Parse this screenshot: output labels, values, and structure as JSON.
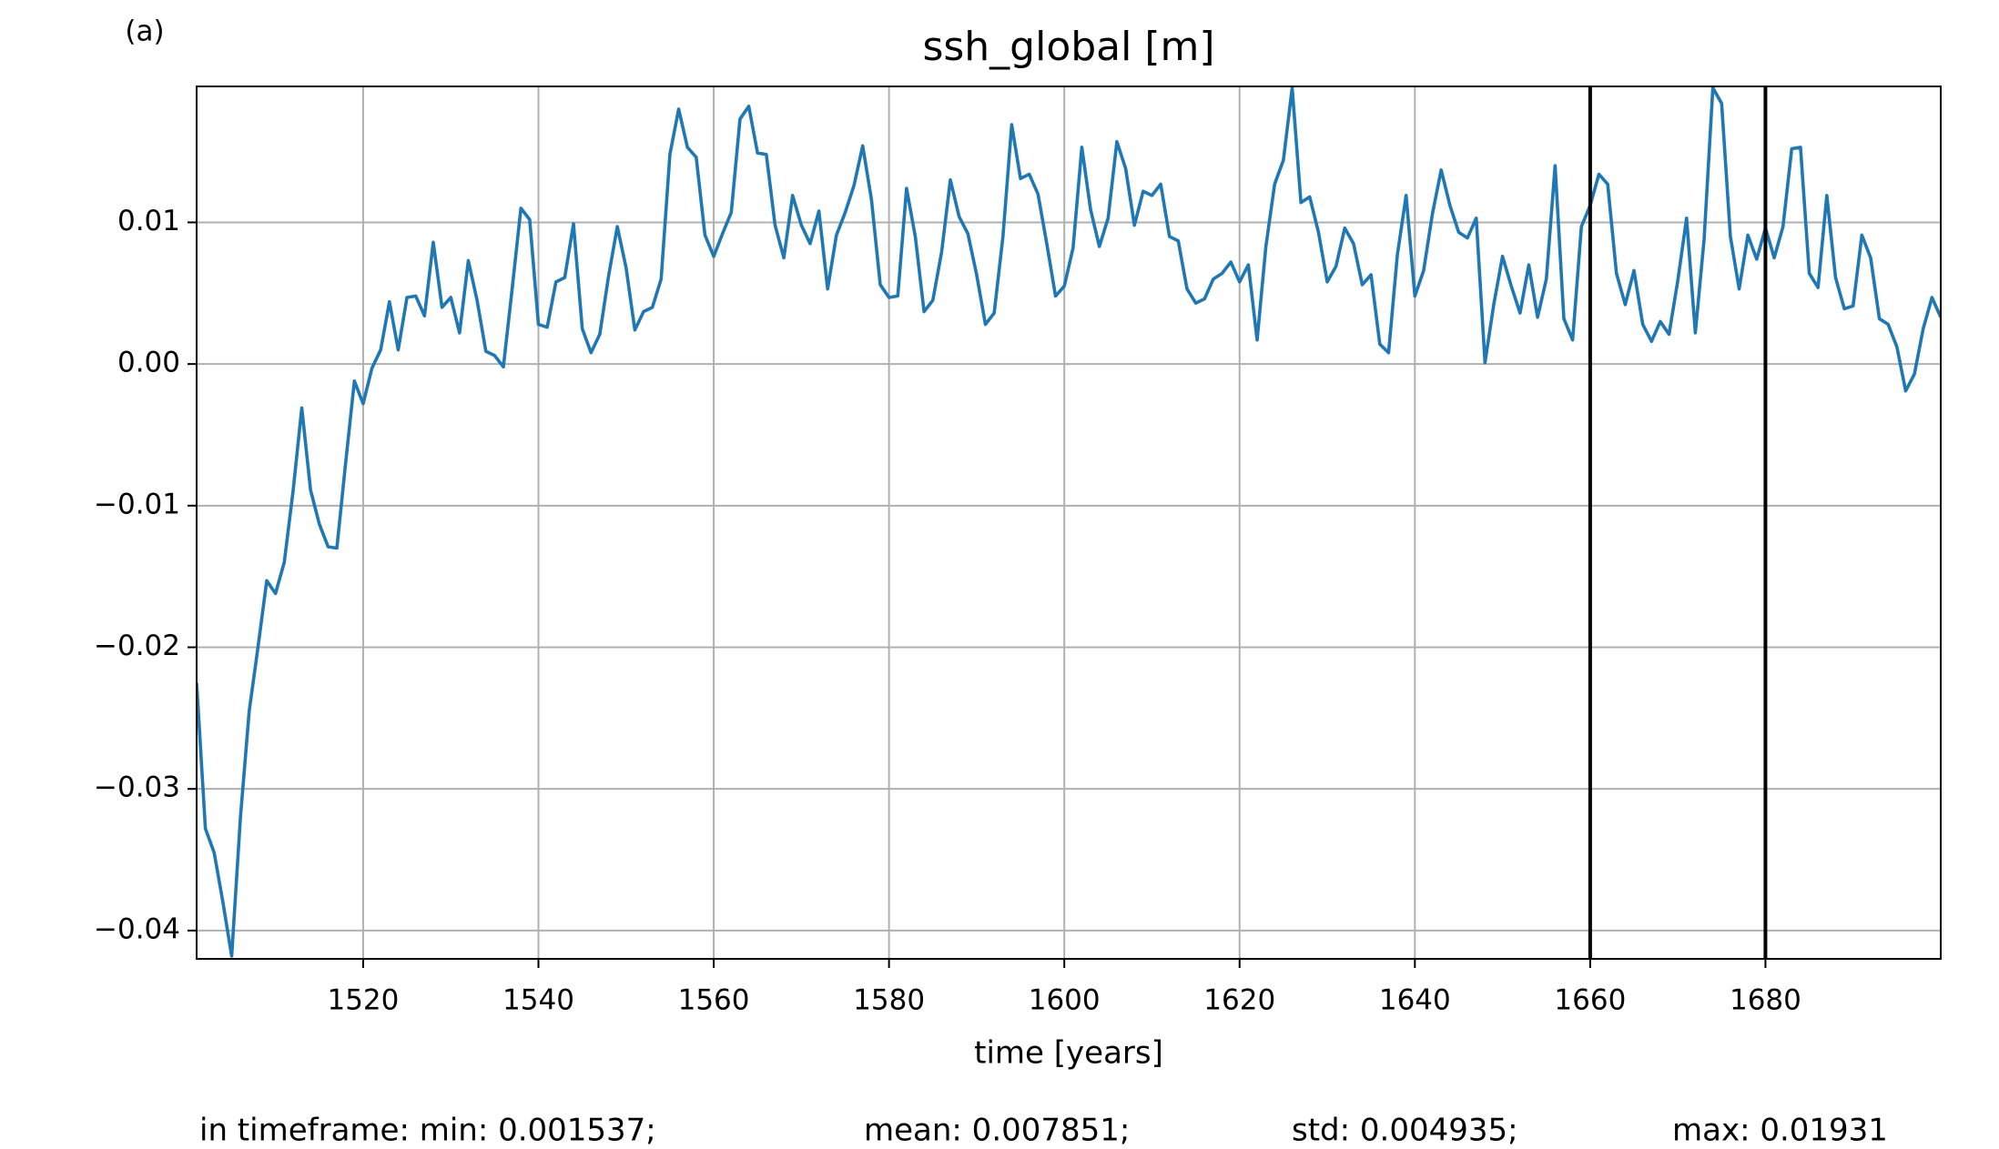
{
  "chart_data": {
    "type": "line",
    "panel_label": "(a)",
    "title": "ssh_global [m]",
    "x_label": "time [years]",
    "footer": [
      "in timeframe: min: 0.001537;",
      "mean: 0.007851;",
      "std: 0.004935;",
      "max: 0.01931"
    ],
    "x": [
      1501,
      1502,
      1503,
      1504,
      1505,
      1506,
      1507,
      1508,
      1509,
      1510,
      1511,
      1512,
      1513,
      1514,
      1515,
      1516,
      1517,
      1518,
      1519,
      1520,
      1521,
      1522,
      1523,
      1524,
      1525,
      1526,
      1527,
      1528,
      1529,
      1530,
      1531,
      1532,
      1533,
      1534,
      1535,
      1536,
      1537,
      1538,
      1539,
      1540,
      1541,
      1542,
      1543,
      1544,
      1545,
      1546,
      1547,
      1548,
      1549,
      1550,
      1551,
      1552,
      1553,
      1554,
      1555,
      1556,
      1557,
      1558,
      1559,
      1560,
      1561,
      1562,
      1563,
      1564,
      1565,
      1566,
      1567,
      1568,
      1569,
      1570,
      1571,
      1572,
      1573,
      1574,
      1575,
      1576,
      1577,
      1578,
      1579,
      1580,
      1581,
      1582,
      1583,
      1584,
      1585,
      1586,
      1587,
      1588,
      1589,
      1590,
      1591,
      1592,
      1593,
      1594,
      1595,
      1596,
      1597,
      1598,
      1599,
      1600,
      1601,
      1602,
      1603,
      1604,
      1605,
      1606,
      1607,
      1608,
      1609,
      1610,
      1611,
      1612,
      1613,
      1614,
      1615,
      1616,
      1617,
      1618,
      1619,
      1620,
      1621,
      1622,
      1623,
      1624,
      1625,
      1626,
      1627,
      1628,
      1629,
      1630,
      1631,
      1632,
      1633,
      1634,
      1635,
      1636,
      1637,
      1638,
      1639,
      1640,
      1641,
      1642,
      1643,
      1644,
      1645,
      1646,
      1647,
      1648,
      1649,
      1650,
      1651,
      1652,
      1653,
      1654,
      1655,
      1656,
      1657,
      1658,
      1659,
      1660,
      1661,
      1662,
      1663,
      1664,
      1665,
      1666,
      1667,
      1668,
      1669,
      1670,
      1671,
      1672,
      1673,
      1674,
      1675,
      1676,
      1677,
      1678,
      1679,
      1680,
      1681,
      1682,
      1683,
      1684,
      1685,
      1686,
      1687,
      1688,
      1689,
      1690,
      1691,
      1692,
      1693,
      1694,
      1695,
      1696,
      1697,
      1698,
      1699,
      1700
    ],
    "series": [
      {
        "color": "#1f77b4",
        "values": [
          -0.0225,
          -0.0328,
          -0.0345,
          -0.038,
          -0.0418,
          -0.032,
          -0.0245,
          -0.02,
          -0.0153,
          -0.0162,
          -0.014,
          -0.009,
          -0.0031,
          -0.0089,
          -0.0113,
          -0.0129,
          -0.013,
          -0.007,
          -0.0012,
          -0.0028,
          -0.0003,
          0.001,
          0.0044,
          0.001,
          0.0047,
          0.0048,
          0.0034,
          0.0086,
          0.004,
          0.0047,
          0.0022,
          0.0073,
          0.0045,
          0.0009,
          0.0006,
          -0.0002,
          0.0053,
          0.011,
          0.0102,
          0.0028,
          0.0026,
          0.0058,
          0.0061,
          0.0099,
          0.0025,
          0.0008,
          0.0021,
          0.0062,
          0.0097,
          0.0068,
          0.0024,
          0.0037,
          0.004,
          0.006,
          0.0148,
          0.018,
          0.0153,
          0.0146,
          0.0091,
          0.0076,
          0.0092,
          0.0107,
          0.0173,
          0.0182,
          0.0149,
          0.0148,
          0.0098,
          0.0075,
          0.0119,
          0.0098,
          0.0085,
          0.0108,
          0.0053,
          0.0091,
          0.0107,
          0.0126,
          0.0154,
          0.0116,
          0.0056,
          0.0047,
          0.0048,
          0.0124,
          0.009,
          0.0037,
          0.0045,
          0.0079,
          0.013,
          0.0104,
          0.0092,
          0.0063,
          0.0028,
          0.0036,
          0.009,
          0.0169,
          0.0131,
          0.0134,
          0.012,
          0.0085,
          0.0048,
          0.0055,
          0.0082,
          0.0153,
          0.0109,
          0.0083,
          0.0103,
          0.0157,
          0.0138,
          0.0098,
          0.0122,
          0.0119,
          0.0127,
          0.009,
          0.0087,
          0.0053,
          0.0043,
          0.0046,
          0.006,
          0.0064,
          0.0072,
          0.0058,
          0.007,
          0.0017,
          0.0083,
          0.0127,
          0.0144,
          0.0195,
          0.0114,
          0.0118,
          0.0093,
          0.0058,
          0.0069,
          0.0096,
          0.0085,
          0.0056,
          0.0063,
          0.0014,
          0.0008,
          0.0077,
          0.0119,
          0.0048,
          0.0066,
          0.0106,
          0.0137,
          0.0112,
          0.0093,
          0.0089,
          0.0103,
          0.0001,
          0.0042,
          0.0076,
          0.0055,
          0.0036,
          0.007,
          0.0033,
          0.006,
          0.014,
          0.0032,
          0.0017,
          0.0097,
          0.0112,
          0.0134,
          0.0127,
          0.0064,
          0.0042,
          0.0066,
          0.0028,
          0.0016,
          0.003,
          0.0021,
          0.0059,
          0.0103,
          0.0022,
          0.0088,
          0.0195,
          0.0184,
          0.009,
          0.0053,
          0.0091,
          0.0074,
          0.0096,
          0.0075,
          0.0097,
          0.0152,
          0.0153,
          0.0064,
          0.0054,
          0.0119,
          0.0061,
          0.0039,
          0.0041,
          0.0091,
          0.0075,
          0.0032,
          0.0028,
          0.0012,
          -0.0019,
          -0.0007,
          0.0025,
          0.0047,
          0.0033
        ]
      }
    ],
    "vlines": [
      1660,
      1680
    ],
    "vline_color": "#000000",
    "xlim": [
      1501,
      1700
    ],
    "xticks": [
      1520,
      1540,
      1560,
      1580,
      1600,
      1620,
      1640,
      1660,
      1680
    ],
    "ylim": [
      -0.042,
      0.0196
    ],
    "yticks": [
      {
        "value": -0.04,
        "label": "−0.04"
      },
      {
        "value": -0.03,
        "label": "−0.03"
      },
      {
        "value": -0.02,
        "label": "−0.02"
      },
      {
        "value": -0.01,
        "label": "−0.01"
      },
      {
        "value": 0,
        "label": "0.00"
      },
      0.01
    ],
    "grid": true
  }
}
